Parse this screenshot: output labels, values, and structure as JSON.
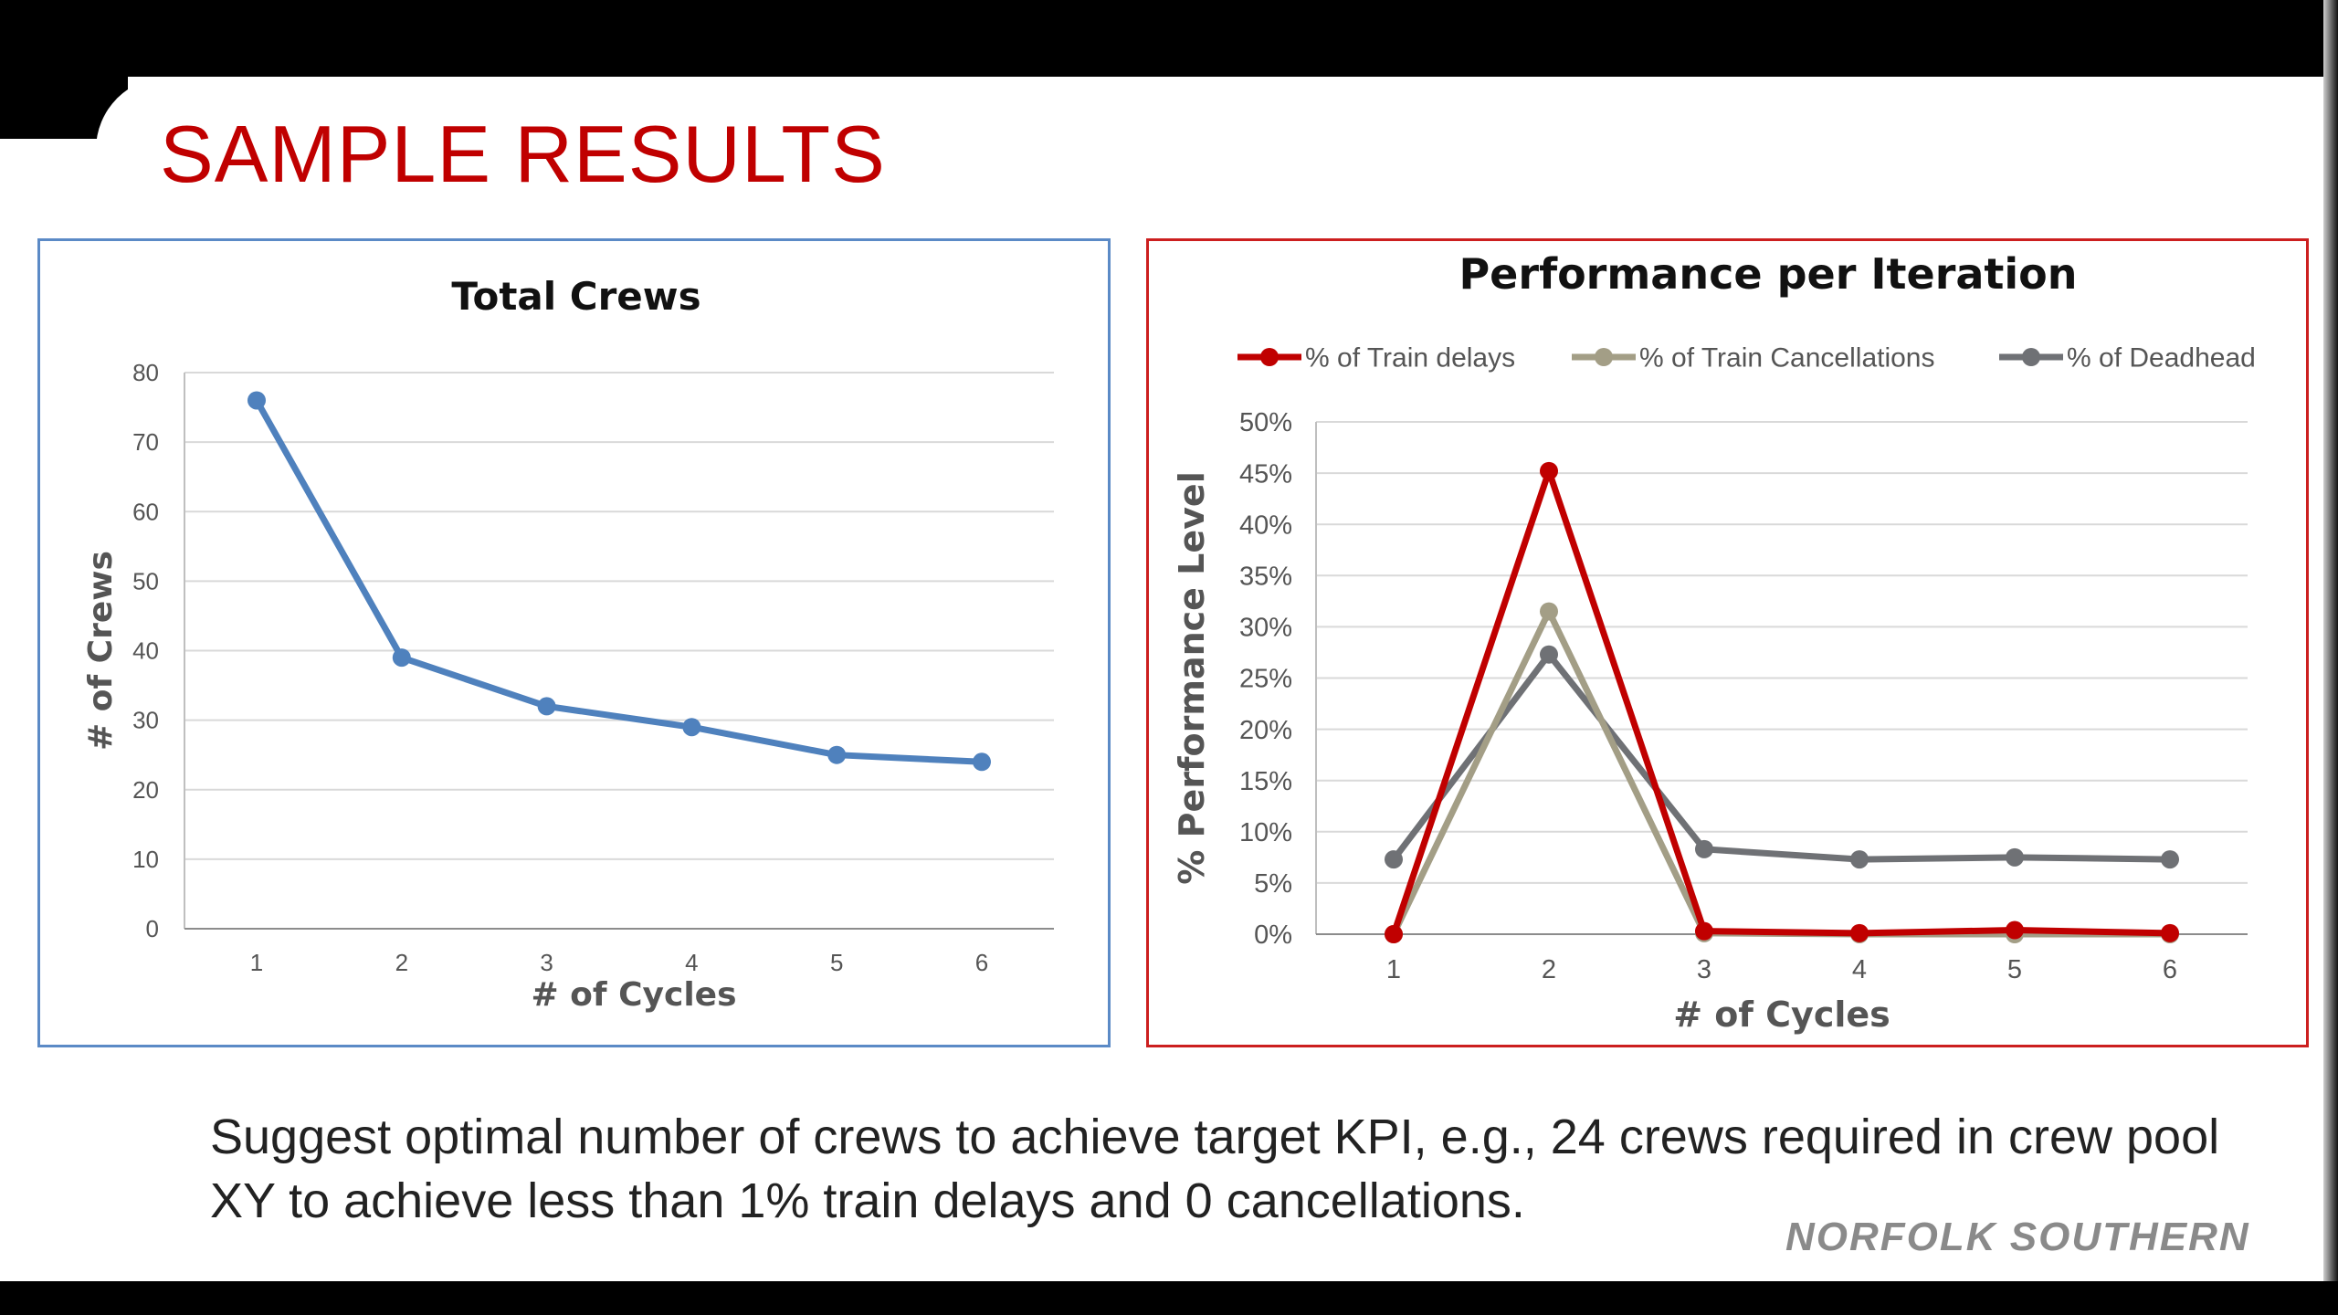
{
  "slide": {
    "title": "SAMPLE RESULTS",
    "caption": "Suggest optimal number of crews to achieve target KPI, e.g., 24 crews required in crew pool XY to achieve less than 1% train delays and 0 cancellations.",
    "logo": "NORFOLK SOUTHERN"
  },
  "chart_data": [
    {
      "type": "line",
      "title": "Total Crews",
      "xlabel": "# of Cycles",
      "ylabel": "# of Crews",
      "x": [
        1,
        2,
        3,
        4,
        5,
        6
      ],
      "ylim": [
        0,
        80
      ],
      "yticks": [
        0,
        10,
        20,
        30,
        40,
        50,
        60,
        70,
        80
      ],
      "grid": true,
      "legend": "none",
      "series": [
        {
          "values": [
            76,
            39,
            32,
            29,
            25,
            24
          ],
          "color": "#4f81bd"
        }
      ]
    },
    {
      "type": "line",
      "title": "Performance per Iteration",
      "xlabel": "# of Cycles",
      "ylabel": "% Performance Level",
      "x": [
        1,
        2,
        3,
        4,
        5,
        6
      ],
      "ylim": [
        0,
        50
      ],
      "yticks": [
        0,
        5,
        10,
        15,
        20,
        25,
        30,
        35,
        40,
        45,
        50
      ],
      "ytick_labels": [
        "0%",
        "5%",
        "10%",
        "15%",
        "20%",
        "25%",
        "30%",
        "35%",
        "40%",
        "45%",
        "50%"
      ],
      "grid": true,
      "legend": "top",
      "series": [
        {
          "name": "% of Train delays",
          "values": [
            0,
            45.2,
            0.3,
            0.1,
            0.4,
            0.1
          ],
          "color": "#c00000"
        },
        {
          "name": "% of Train Cancellations",
          "values": [
            0,
            31.5,
            0.1,
            0.0,
            0.0,
            0.0
          ],
          "color": "#a39e86"
        },
        {
          "name": "% of Deadhead",
          "values": [
            7.3,
            27.3,
            8.3,
            7.3,
            7.5,
            7.3
          ],
          "color": "#6f7175"
        }
      ]
    }
  ]
}
